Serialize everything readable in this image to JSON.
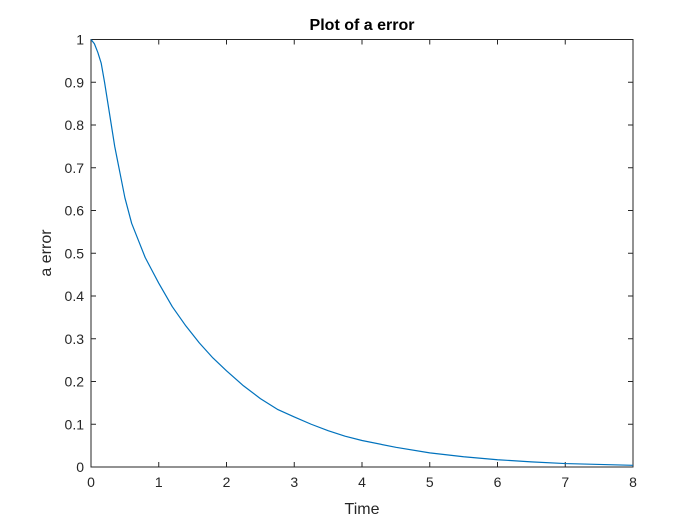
{
  "chart_data": {
    "type": "line",
    "title": "Plot of a error",
    "xlabel": "Time",
    "ylabel": "a error",
    "xlim": [
      0,
      8
    ],
    "ylim": [
      0,
      1
    ],
    "xticks": [
      "0",
      "1",
      "2",
      "3",
      "4",
      "5",
      "6",
      "7",
      "8"
    ],
    "yticks": [
      "0",
      "0.1",
      "0.2",
      "0.3",
      "0.4",
      "0.5",
      "0.6",
      "0.7",
      "0.8",
      "0.9",
      "1"
    ],
    "grid": false,
    "legend": "none",
    "series": [
      {
        "color": "#0072BD",
        "x": [
          0,
          0.05,
          0.1,
          0.15,
          0.2,
          0.25,
          0.3,
          0.35,
          0.4,
          0.45,
          0.5,
          0.6,
          0.7,
          0.8,
          0.9,
          1.0,
          1.2,
          1.4,
          1.6,
          1.8,
          2.0,
          2.25,
          2.5,
          2.75,
          3.0,
          3.25,
          3.5,
          3.75,
          4.0,
          4.5,
          5.0,
          5.5,
          6.0,
          6.5,
          7.0,
          7.5,
          8.0
        ],
        "y": [
          1.0,
          0.99,
          0.97,
          0.945,
          0.9,
          0.85,
          0.8,
          0.75,
          0.71,
          0.67,
          0.63,
          0.57,
          0.53,
          0.49,
          0.46,
          0.43,
          0.375,
          0.33,
          0.29,
          0.255,
          0.225,
          0.19,
          0.16,
          0.135,
          0.117,
          0.1,
          0.085,
          0.072,
          0.062,
          0.046,
          0.033,
          0.024,
          0.017,
          0.012,
          0.008,
          0.006,
          0.004
        ]
      }
    ]
  }
}
